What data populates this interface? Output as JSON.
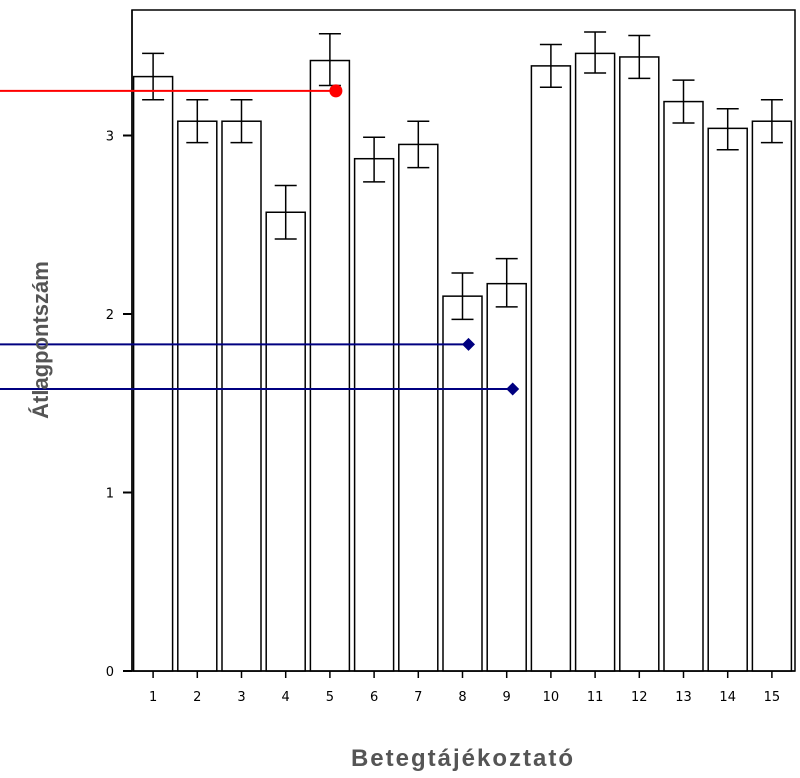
{
  "chart_data": {
    "type": "bar",
    "title": "",
    "xlabel": "Betegtájékoztató",
    "ylabel": "Átlagpontszám",
    "categories": [
      "1",
      "2",
      "3",
      "4",
      "5",
      "6",
      "7",
      "8",
      "9",
      "10",
      "11",
      "12",
      "13",
      "14",
      "15"
    ],
    "values": [
      3.33,
      3.08,
      3.08,
      2.57,
      3.42,
      2.87,
      2.95,
      2.1,
      2.17,
      3.39,
      3.46,
      3.44,
      3.19,
      3.04,
      3.08
    ],
    "error_low": [
      3.2,
      2.96,
      2.96,
      2.42,
      3.28,
      2.74,
      2.82,
      1.97,
      2.04,
      3.27,
      3.35,
      3.32,
      3.07,
      2.92,
      2.96
    ],
    "error_high": [
      3.46,
      3.2,
      3.2,
      2.72,
      3.57,
      2.99,
      3.08,
      2.23,
      2.31,
      3.51,
      3.58,
      3.56,
      3.31,
      3.15,
      3.2
    ],
    "yticks": [
      "0",
      "1",
      "2",
      "3"
    ],
    "ylim": [
      0,
      3.7
    ],
    "grid": false,
    "annotations": [
      {
        "target_category": "5",
        "y": 3.25,
        "marker": "circle",
        "color": "#ff0000"
      },
      {
        "target_category": "8",
        "y": 1.83,
        "marker": "diamond",
        "color": "#000080"
      },
      {
        "target_category": "9",
        "y": 1.58,
        "marker": "diamond",
        "color": "#000080"
      }
    ]
  }
}
